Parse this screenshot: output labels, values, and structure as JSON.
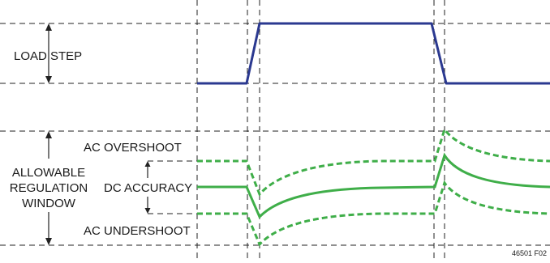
{
  "labels": {
    "load_step": "LOAD STEP",
    "ac_overshoot": "AC OVERSHOOT",
    "allowable_line1": "ALLOWABLE",
    "allowable_line2": "REGULATION",
    "allowable_line3": "WINDOW",
    "dc_accuracy": "DC ACCURACY",
    "ac_undershoot": "AC UNDERSHOOT"
  },
  "figure_id": "46501 F02",
  "colors": {
    "load_step_trace": "#2b3990",
    "regulation_trace": "#3fae49",
    "guides": "#222222",
    "text": "#1a1a1a"
  }
}
